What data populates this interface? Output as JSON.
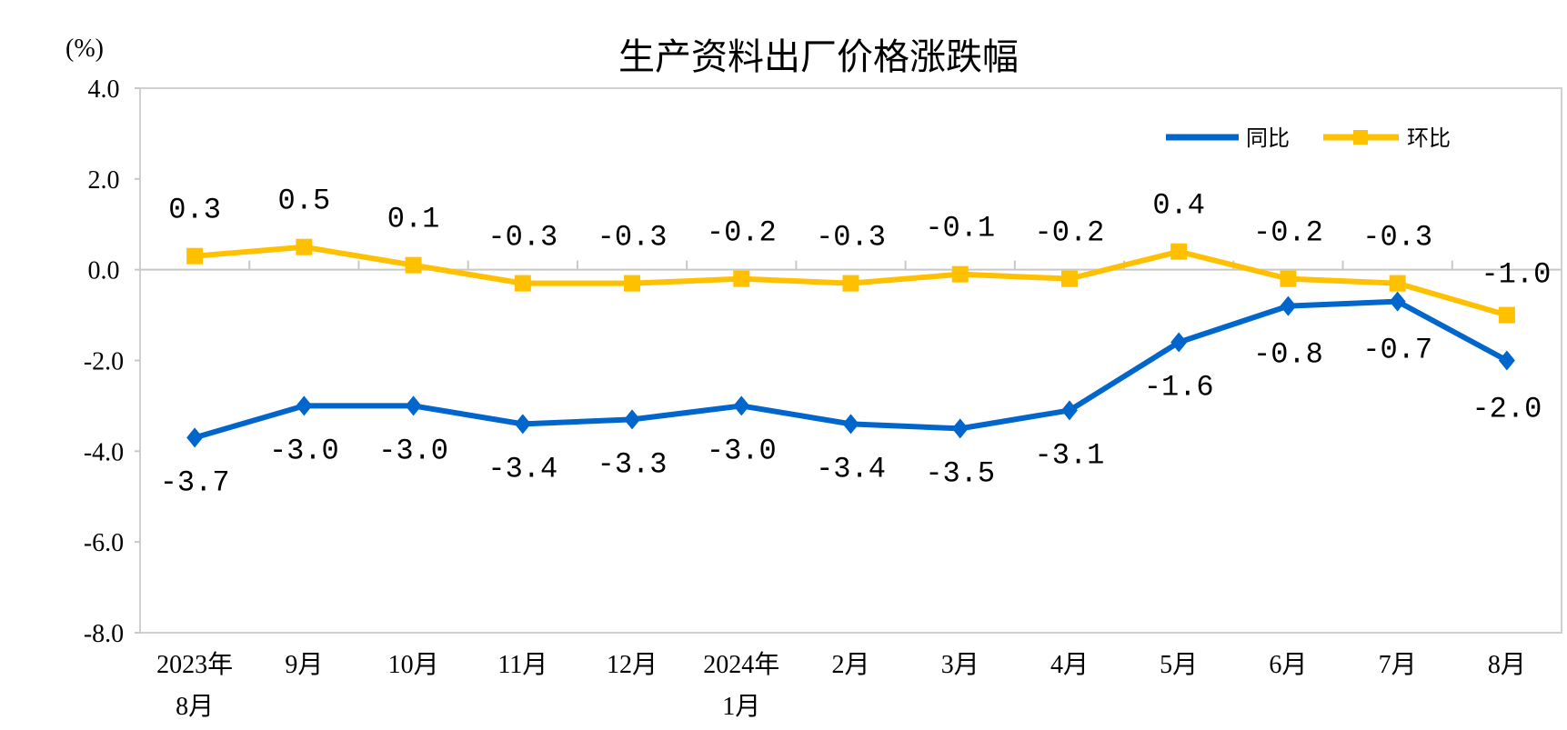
{
  "chart_data": {
    "type": "line",
    "title": "生产资料出厂价格涨跌幅",
    "ylabel": "(%)",
    "ylim": [
      -8.0,
      4.0
    ],
    "yticks": [
      "4.0",
      "2.0",
      "0.0",
      "-2.0",
      "-4.0",
      "-6.0",
      "-8.0"
    ],
    "ytick_values": [
      4,
      2,
      0,
      -2,
      -4,
      -6,
      -8
    ],
    "categories": [
      [
        "2023年",
        "8月"
      ],
      [
        "9月"
      ],
      [
        "10月"
      ],
      [
        "11月"
      ],
      [
        "12月"
      ],
      [
        "2024年",
        "1月"
      ],
      [
        "2月"
      ],
      [
        "3月"
      ],
      [
        "4月"
      ],
      [
        "5月"
      ],
      [
        "6月"
      ],
      [
        "7月"
      ],
      [
        "8月"
      ]
    ],
    "grid": false,
    "legend_position": "top-right",
    "series": [
      {
        "name": "同比",
        "color": "#0066CC",
        "marker": "diamond",
        "values": [
          -3.7,
          -3.0,
          -3.0,
          -3.4,
          -3.3,
          -3.0,
          -3.4,
          -3.5,
          -3.1,
          -1.6,
          -0.8,
          -0.7,
          -2.0
        ],
        "labels": [
          "-3.7",
          "-3.0",
          "-3.0",
          "-3.4",
          "-3.3",
          "-3.0",
          "-3.4",
          "-3.5",
          "-3.1",
          "-1.6",
          "-0.8",
          "-0.7",
          "-2.0"
        ]
      },
      {
        "name": "环比",
        "color": "#FFC000",
        "marker": "square",
        "values": [
          0.3,
          0.5,
          0.1,
          -0.3,
          -0.3,
          -0.2,
          -0.3,
          -0.1,
          -0.2,
          0.4,
          -0.2,
          -0.3,
          -1.0
        ],
        "labels": [
          "0.3",
          "0.5",
          "0.1",
          "-0.3",
          "-0.3",
          "-0.2",
          "-0.3",
          "-0.1",
          "-0.2",
          "0.4",
          "-0.2",
          "-0.3",
          "-1.0"
        ]
      }
    ]
  }
}
